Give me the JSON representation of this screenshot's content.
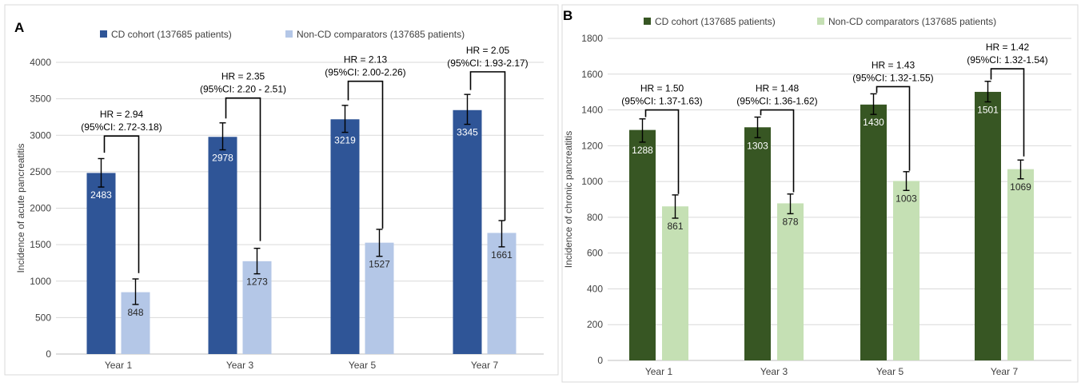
{
  "panels": [
    {
      "panel_label": "A",
      "colors": {
        "series1": "#2f5597",
        "series2": "#b4c7e7",
        "grid": "#d9d9d9",
        "axis": "#bfbfbf",
        "text": "#404040",
        "label_on_bar": "#ffffff",
        "label_on_light": "#262626"
      }
    },
    {
      "panel_label": "B",
      "colors": {
        "series1": "#375623",
        "series2": "#c5e0b4",
        "grid": "#d9d9d9",
        "axis": "#bfbfbf",
        "text": "#404040",
        "label_on_bar": "#ffffff",
        "label_on_light": "#262626"
      }
    }
  ],
  "chart_data": [
    {
      "type": "bar",
      "categories": [
        "Year 1",
        "Year 3",
        "Year 5",
        "Year 7"
      ],
      "series": [
        {
          "name": "CD cohort (137685 patients)",
          "values": [
            2483,
            2978,
            3219,
            3345
          ],
          "error_low": [
            2290,
            2800,
            3040,
            3150
          ],
          "error_high": [
            2680,
            3170,
            3410,
            3560
          ]
        },
        {
          "name": "Non-CD comparators (137685 patients)",
          "values": [
            848,
            1273,
            1527,
            1661
          ],
          "error_low": [
            680,
            1100,
            1340,
            1470
          ],
          "error_high": [
            1030,
            1450,
            1710,
            1830
          ]
        }
      ],
      "ylabel": "Incidence of acute pancreatitis",
      "xlabel": "",
      "ylim": [
        0,
        4000
      ],
      "yticks": [
        0,
        500,
        1000,
        1500,
        2000,
        2500,
        3000,
        3500,
        4000
      ],
      "grid": true,
      "legend": "top",
      "annotations": [
        {
          "line1": "HR = 2.94",
          "line2": "(95%CI: 2.72-3.18)",
          "level": 2990,
          "cd_top": 2760,
          "non_top": 1110
        },
        {
          "line1": "HR = 2.35",
          "line2": "(95%CI: 2.20 - 2.51)",
          "level": 3510,
          "cd_top": 3230,
          "non_top": 1550
        },
        {
          "line1": "HR = 2.13",
          "line2": "(95%CI: 2.00-2.26)",
          "level": 3740,
          "cd_top": 3480,
          "non_top": 1720
        },
        {
          "line1": "HR = 2.05",
          "line2": "(95%CI: 1.93-2.17)",
          "level": 3870,
          "cd_top": 3620,
          "non_top": 1830
        }
      ]
    },
    {
      "type": "bar",
      "categories": [
        "Year 1",
        "Year 3",
        "Year 5",
        "Year 7"
      ],
      "series": [
        {
          "name": "CD cohort (137685 patients)",
          "values": [
            1288,
            1303,
            1430,
            1501
          ],
          "error_low": [
            1220,
            1245,
            1375,
            1445
          ],
          "error_high": [
            1350,
            1360,
            1490,
            1560
          ]
        },
        {
          "name": "Non-CD comparators (137685 patients)",
          "values": [
            861,
            878,
            1003,
            1069
          ],
          "error_low": [
            795,
            820,
            950,
            1015
          ],
          "error_high": [
            925,
            930,
            1055,
            1120
          ]
        }
      ],
      "ylabel": "Incidence of chronic pancreatitis",
      "xlabel": "",
      "ylim": [
        0,
        1800
      ],
      "yticks": [
        0,
        200,
        400,
        600,
        800,
        1000,
        1200,
        1400,
        1600,
        1800
      ],
      "grid": true,
      "legend": "top",
      "annotations": [
        {
          "line1": "HR = 1.50",
          "line2": "(95%CI: 1.37-1.63)",
          "level": 1400,
          "cd_top": 1360,
          "non_top": 930
        },
        {
          "line1": "HR = 1.48",
          "line2": "(95%CI: 1.36-1.62)",
          "level": 1400,
          "cd_top": 1370,
          "non_top": 940
        },
        {
          "line1": "HR = 1.43",
          "line2": "(95%CI: 1.32-1.55)",
          "level": 1530,
          "cd_top": 1495,
          "non_top": 1060
        },
        {
          "line1": "HR = 1.42",
          "line2": "(95%CI: 1.32-1.54)",
          "level": 1630,
          "cd_top": 1570,
          "non_top": 1140
        }
      ]
    }
  ]
}
